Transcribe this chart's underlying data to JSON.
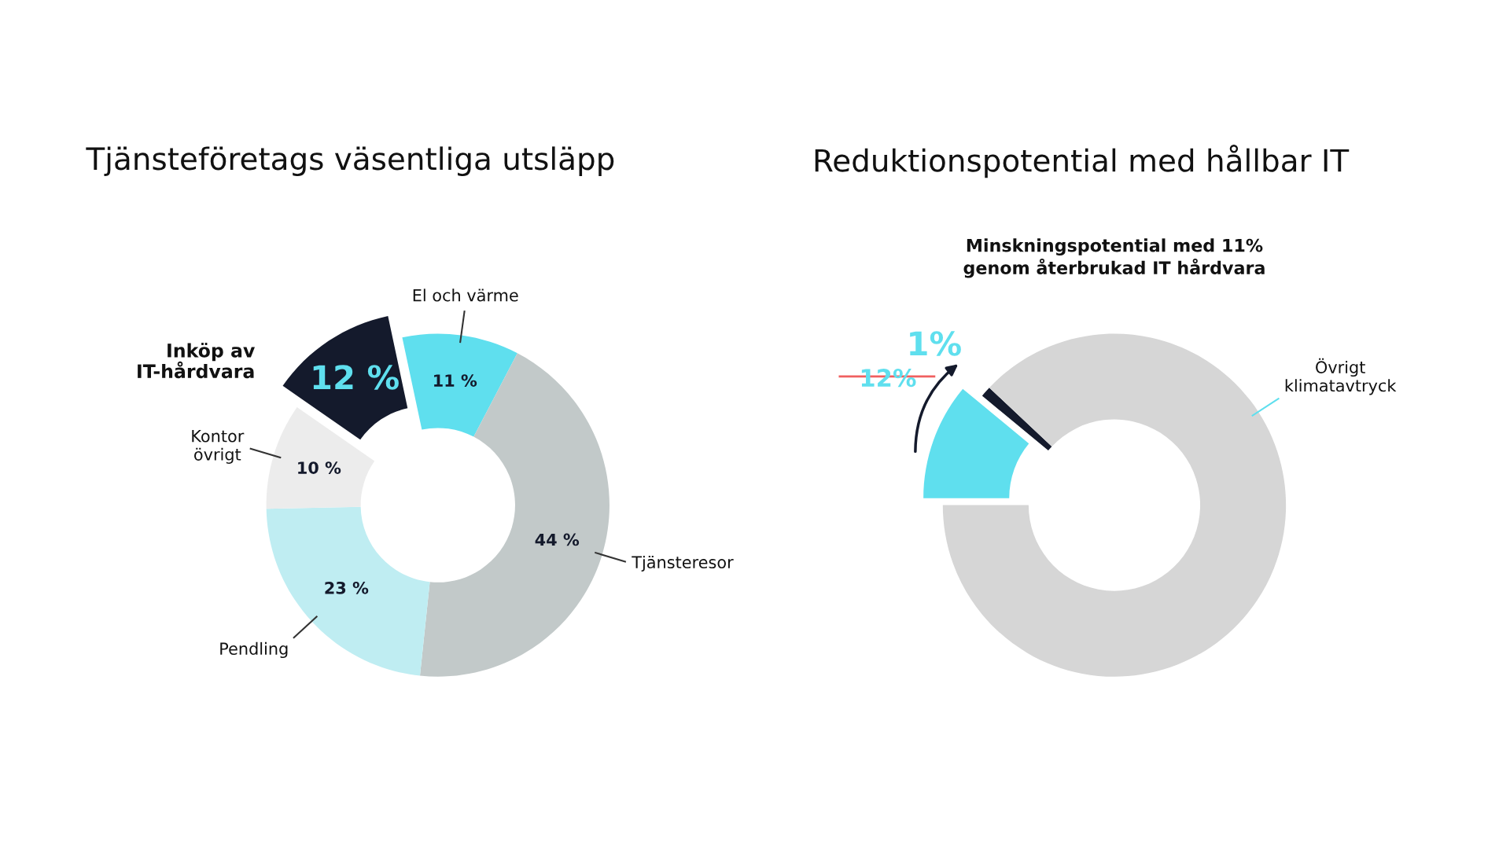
{
  "chart_data": [
    {
      "type": "donut",
      "title": "Tjänsteföretags väsentliga utsläpp",
      "categories": [
        "El och värme",
        "Tjänsteresor",
        "Pendling",
        "Kontor\növrigt",
        "Inköp av\nIT-hårdvara"
      ],
      "values": [
        11,
        44,
        23,
        10,
        12
      ],
      "colors": [
        "#5fdfee",
        "#c2c9c9",
        "#bfedf2",
        "#ececec",
        "#141a2c"
      ],
      "value_labels": [
        "11 %",
        "44 %",
        "23 %",
        "10 %",
        "12 %"
      ],
      "legend": false
    },
    {
      "type": "donut",
      "title": "Reduktionspotential med hållbar IT",
      "subtitle": "Minskningspotential med 11%\ngenom återbrukad IT hårdvara",
      "categories": [
        null,
        null,
        "Övrigt\nklimatavtryck"
      ],
      "values": [
        11,
        1,
        88
      ],
      "colors": [
        "#5fdfee",
        "#141a2c",
        "#d6d6d6"
      ],
      "value_labels": [
        null,
        "1%",
        null
      ],
      "annotations": [
        "12%"
      ],
      "legend": false
    }
  ]
}
